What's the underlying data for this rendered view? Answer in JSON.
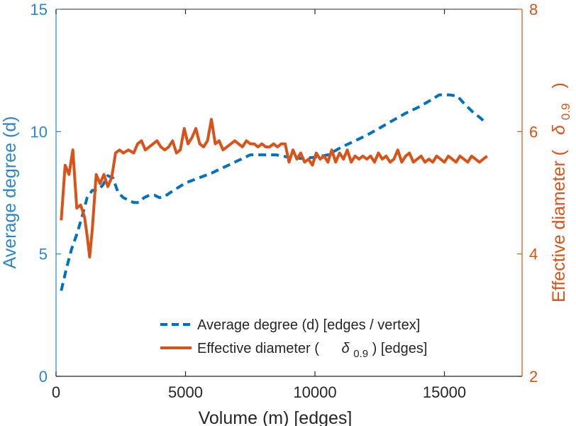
{
  "chart_data": {
    "type": "line",
    "xlabel": "Volume (m) [edges]",
    "ylabel_left": "Average degree (d)",
    "ylabel_right_prefix": "Effective diameter (",
    "ylabel_right_symbol": "δ",
    "ylabel_right_sub": "0.9",
    "ylabel_right_suffix": ")",
    "xlim": [
      0,
      18000
    ],
    "ylim_left": [
      0,
      15
    ],
    "ylim_right": [
      2,
      8
    ],
    "x_ticks": [
      0,
      5000,
      10000,
      15000
    ],
    "y_ticks_left": [
      0,
      5,
      10,
      15
    ],
    "y_ticks_right": [
      2,
      4,
      6,
      8
    ],
    "grid": false,
    "legend_position": "bottom-right",
    "colors": {
      "left_axis": "#2a87c8",
      "right_axis": "#d95319",
      "degree": "#0072bd",
      "diameter": "#d95319"
    },
    "legend": {
      "degree_label": "Average degree (d) [edges / vertex]",
      "diameter_prefix": "Effective diameter (",
      "diameter_symbol": "δ",
      "diameter_sub": "0.9",
      "diameter_suffix": ") [edges]"
    },
    "series": [
      {
        "key": "degree",
        "axis": "left",
        "style": "dashed",
        "x": [
          200,
          400,
          600,
          800,
          1000,
          1200,
          1400,
          1600,
          1800,
          2000,
          2200,
          2400,
          2600,
          2800,
          3000,
          3200,
          3400,
          3600,
          3800,
          4000,
          4200,
          4400,
          5000,
          5500,
          6000,
          6500,
          7000,
          7500,
          8000,
          8500,
          9000,
          9500,
          10000,
          10500,
          11000,
          11500,
          12000,
          12500,
          13000,
          13500,
          14000,
          14500,
          14800,
          15000,
          15200,
          15500,
          15800,
          16100,
          16400,
          16600
        ],
        "values": [
          3.5,
          4.4,
          5.2,
          5.8,
          6.5,
          7.3,
          7.6,
          7.6,
          7.8,
          8.2,
          8.1,
          7.5,
          7.3,
          7.2,
          7.1,
          7.1,
          7.3,
          7.4,
          7.4,
          7.3,
          7.35,
          7.5,
          7.9,
          8.1,
          8.3,
          8.55,
          8.8,
          9.05,
          9.05,
          9.05,
          8.95,
          8.9,
          8.95,
          9.05,
          9.35,
          9.6,
          9.85,
          10.15,
          10.45,
          10.75,
          11.0,
          11.3,
          11.5,
          11.5,
          11.5,
          11.45,
          11.1,
          10.8,
          10.55,
          10.35
        ]
      },
      {
        "key": "diameter",
        "axis": "right",
        "style": "solid",
        "x": [
          200,
          350,
          500,
          650,
          800,
          950,
          1100,
          1200,
          1300,
          1400,
          1550,
          1700,
          1850,
          2000,
          2150,
          2300,
          2450,
          2600,
          2800,
          3000,
          3150,
          3300,
          3450,
          3600,
          3750,
          3900,
          4050,
          4200,
          4350,
          4500,
          4650,
          4800,
          4950,
          5100,
          5250,
          5400,
          5550,
          5700,
          5850,
          6000,
          6150,
          6300,
          6450,
          6600,
          6750,
          6900,
          7050,
          7200,
          7350,
          7500,
          7650,
          7800,
          7950,
          8100,
          8250,
          8400,
          8550,
          8700,
          8850,
          9000,
          9150,
          9300,
          9450,
          9600,
          9750,
          9900,
          10050,
          10200,
          10350,
          10500,
          10650,
          10800,
          10950,
          11100,
          11250,
          11400,
          11550,
          11700,
          11850,
          12000,
          12150,
          12300,
          12450,
          12600,
          12750,
          12900,
          13050,
          13200,
          13350,
          13500,
          13650,
          13800,
          13950,
          14100,
          14250,
          14400,
          14550,
          14700,
          14850,
          15000,
          15150,
          15300,
          15450,
          15600,
          15750,
          15900,
          16050,
          16200,
          16350,
          16500,
          16650
        ],
        "values": [
          4.55,
          5.45,
          5.3,
          5.7,
          4.75,
          4.8,
          4.6,
          4.3,
          3.95,
          4.4,
          5.3,
          5.15,
          5.3,
          5.1,
          5.25,
          5.65,
          5.7,
          5.65,
          5.7,
          5.65,
          5.8,
          5.85,
          5.7,
          5.75,
          5.8,
          5.85,
          5.75,
          5.7,
          5.75,
          5.85,
          5.65,
          5.7,
          6.05,
          5.8,
          5.9,
          6.05,
          5.8,
          5.75,
          5.85,
          6.2,
          5.8,
          5.85,
          5.7,
          5.75,
          5.8,
          5.85,
          5.8,
          5.75,
          5.85,
          5.8,
          5.8,
          5.75,
          5.8,
          5.75,
          5.75,
          5.8,
          5.75,
          5.8,
          5.8,
          5.5,
          5.7,
          5.55,
          5.65,
          5.5,
          5.55,
          5.45,
          5.65,
          5.55,
          5.6,
          5.5,
          5.7,
          5.5,
          5.65,
          5.55,
          5.7,
          5.5,
          5.6,
          5.55,
          5.6,
          5.55,
          5.6,
          5.5,
          5.65,
          5.55,
          5.6,
          5.5,
          5.55,
          5.7,
          5.5,
          5.6,
          5.65,
          5.5,
          5.55,
          5.6,
          5.5,
          5.55,
          5.5,
          5.6,
          5.55,
          5.5,
          5.6,
          5.55,
          5.5,
          5.6,
          5.55,
          5.5,
          5.6,
          5.55,
          5.5,
          5.55,
          5.6
        ]
      }
    ]
  }
}
